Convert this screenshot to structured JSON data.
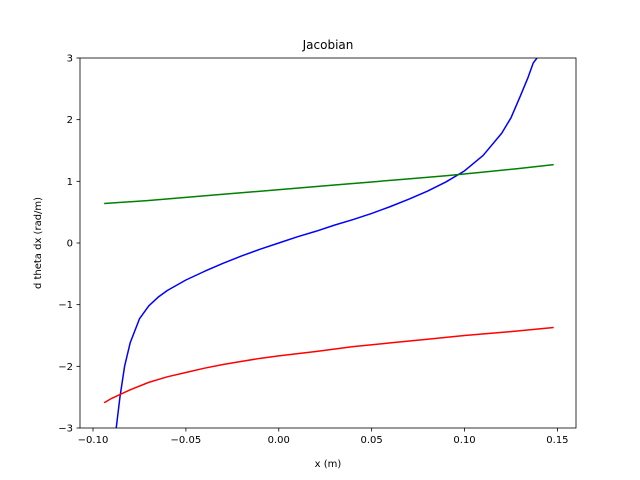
{
  "chart_data": {
    "type": "line",
    "title": "Jacobian",
    "xlabel": "x (m)",
    "ylabel": "d theta dx (rad/m)",
    "xlim": [
      -0.107,
      0.16
    ],
    "ylim": [
      -3,
      3
    ],
    "xticks": [
      -0.1,
      -0.05,
      0.0,
      0.05,
      0.1,
      0.15
    ],
    "xtick_labels": [
      "−0.10",
      "−0.05",
      "0.00",
      "0.05",
      "0.10",
      "0.15"
    ],
    "yticks": [
      -3,
      -2,
      -1,
      0,
      1,
      2,
      3
    ],
    "ytick_labels": [
      "−3",
      "−2",
      "−1",
      "0",
      "1",
      "2",
      "3"
    ],
    "grid": false,
    "series": [
      {
        "color": "#0000ff",
        "x": [
          -0.0875,
          -0.0855,
          -0.083,
          -0.08,
          -0.075,
          -0.07,
          -0.065,
          -0.06,
          -0.05,
          -0.04,
          -0.03,
          -0.02,
          -0.01,
          0.0,
          0.01,
          0.02,
          0.03,
          0.04,
          0.05,
          0.06,
          0.07,
          0.08,
          0.09,
          0.1,
          0.11,
          0.12,
          0.125,
          0.13,
          0.134,
          0.137,
          0.139
        ],
        "y": [
          -3.0,
          -2.5,
          -2.0,
          -1.62,
          -1.23,
          -1.02,
          -0.88,
          -0.77,
          -0.6,
          -0.46,
          -0.33,
          -0.21,
          -0.1,
          0.0,
          0.1,
          0.19,
          0.29,
          0.38,
          0.48,
          0.59,
          0.71,
          0.84,
          0.99,
          1.17,
          1.42,
          1.78,
          2.03,
          2.38,
          2.67,
          2.92,
          3.0
        ]
      },
      {
        "color": "#008000",
        "x": [
          -0.094,
          -0.07,
          -0.05,
          -0.03,
          -0.01,
          0.01,
          0.03,
          0.05,
          0.07,
          0.09,
          0.11,
          0.13,
          0.148
        ],
        "y": [
          0.64,
          0.69,
          0.74,
          0.79,
          0.84,
          0.89,
          0.94,
          0.99,
          1.04,
          1.09,
          1.15,
          1.21,
          1.27
        ]
      },
      {
        "color": "#ff0000",
        "x": [
          -0.094,
          -0.09,
          -0.08,
          -0.07,
          -0.06,
          -0.05,
          -0.04,
          -0.03,
          -0.02,
          -0.01,
          0.0,
          0.02,
          0.04,
          0.06,
          0.08,
          0.1,
          0.12,
          0.148
        ],
        "y": [
          -2.59,
          -2.52,
          -2.38,
          -2.26,
          -2.17,
          -2.1,
          -2.03,
          -1.97,
          -1.92,
          -1.87,
          -1.83,
          -1.76,
          -1.68,
          -1.62,
          -1.56,
          -1.5,
          -1.45,
          -1.37
        ]
      }
    ]
  }
}
